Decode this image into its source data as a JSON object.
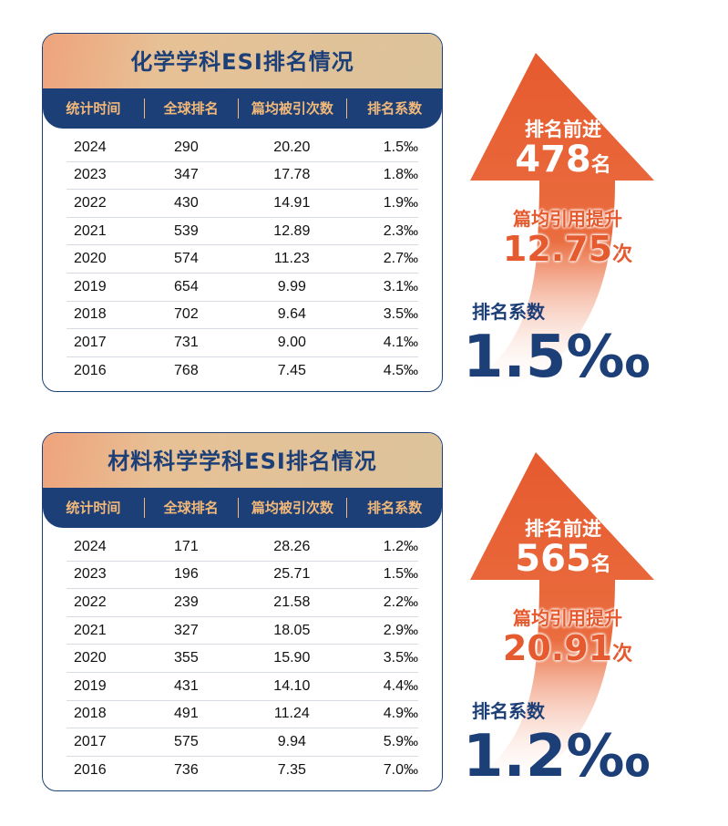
{
  "sections": [
    {
      "title": "化学学科ESI排名情况",
      "headers": [
        "统计时间",
        "全球排名",
        "篇均被引次数",
        "排名系数"
      ],
      "rows": [
        [
          "2024",
          "290",
          "20.20",
          "1.5‰"
        ],
        [
          "2023",
          "347",
          "17.78",
          "1.8‰"
        ],
        [
          "2022",
          "430",
          "14.91",
          "1.9‰"
        ],
        [
          "2021",
          "539",
          "12.89",
          "2.3‰"
        ],
        [
          "2020",
          "574",
          "11.23",
          "2.7‰"
        ],
        [
          "2019",
          "654",
          "9.99",
          "3.1‰"
        ],
        [
          "2018",
          "702",
          "9.64",
          "3.5‰"
        ],
        [
          "2017",
          "731",
          "9.00",
          "4.1‰"
        ],
        [
          "2016",
          "768",
          "7.45",
          "4.5‰"
        ]
      ],
      "highlight": {
        "rank_label": "排名前进",
        "rank_value": "478",
        "rank_unit": "名",
        "cite_label": "篇均引用提升",
        "cite_value": "12.75",
        "cite_unit": "次",
        "coef_label": "排名系数",
        "coef_value": "1.5‰"
      }
    },
    {
      "title": "材料科学学科ESI排名情况",
      "headers": [
        "统计时间",
        "全球排名",
        "篇均被引次数",
        "排名系数"
      ],
      "rows": [
        [
          "2024",
          "171",
          "28.26",
          "1.2‰"
        ],
        [
          "2023",
          "196",
          "25.71",
          "1.5‰"
        ],
        [
          "2022",
          "239",
          "21.58",
          "2.2‰"
        ],
        [
          "2021",
          "327",
          "18.05",
          "2.9‰"
        ],
        [
          "2020",
          "355",
          "15.90",
          "3.5‰"
        ],
        [
          "2019",
          "431",
          "14.10",
          "4.4‰"
        ],
        [
          "2018",
          "491",
          "11.24",
          "4.9‰"
        ],
        [
          "2017",
          "575",
          "9.94",
          "5.9‰"
        ],
        [
          "2016",
          "736",
          "7.35",
          "7.0‰"
        ]
      ],
      "highlight": {
        "rank_label": "排名前进",
        "rank_value": "565",
        "rank_unit": "名",
        "cite_label": "篇均引用提升",
        "cite_value": "20.91",
        "cite_unit": "次",
        "coef_label": "排名系数",
        "coef_value": "1.2‰"
      }
    }
  ],
  "colors": {
    "navy": "#1d3f78",
    "orange": "#e65a2f",
    "header_text": "#f2b978",
    "title_band": "#dcc39a"
  }
}
